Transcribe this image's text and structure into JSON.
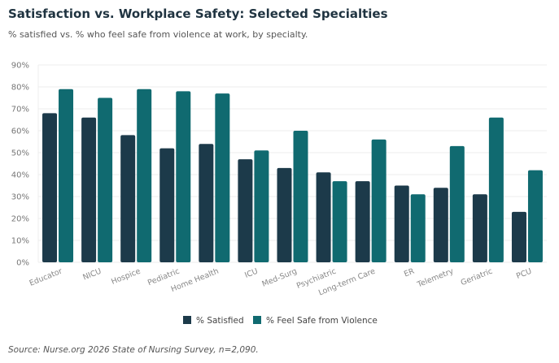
{
  "title": "Satisfaction vs. Workplace Safety: Selected Specialties",
  "subtitle": "% satisfied vs. % who feel safe from violence at work, by specialty.",
  "source": "Source: Nurse.org 2026 State of Nursing Survey, n=2,090.",
  "chart_data": {
    "type": "bar",
    "categories": [
      "Educator",
      "NICU",
      "Hospice",
      "Pediatric",
      "Home Health",
      "ICU",
      "Med-Surg",
      "Psychiatric",
      "Long-term Care",
      "ER",
      "Telemetry",
      "Geriatric",
      "PCU"
    ],
    "series": [
      {
        "name": "% Satisfied",
        "color": "#1c3a4a",
        "values": [
          68,
          66,
          58,
          52,
          54,
          47,
          43,
          41,
          37,
          35,
          34,
          31,
          23
        ]
      },
      {
        "name": "% Feel Safe from Violence",
        "color": "#106a70",
        "values": [
          79,
          75,
          79,
          78,
          77,
          51,
          60,
          37,
          56,
          31,
          53,
          66,
          42
        ]
      }
    ],
    "ylim": [
      0,
      90
    ],
    "yticks": [
      "0%",
      "10%",
      "20%",
      "30%",
      "40%",
      "50%",
      "60%",
      "70%",
      "80%",
      "90%"
    ],
    "grid": true,
    "legend": "bottom"
  }
}
